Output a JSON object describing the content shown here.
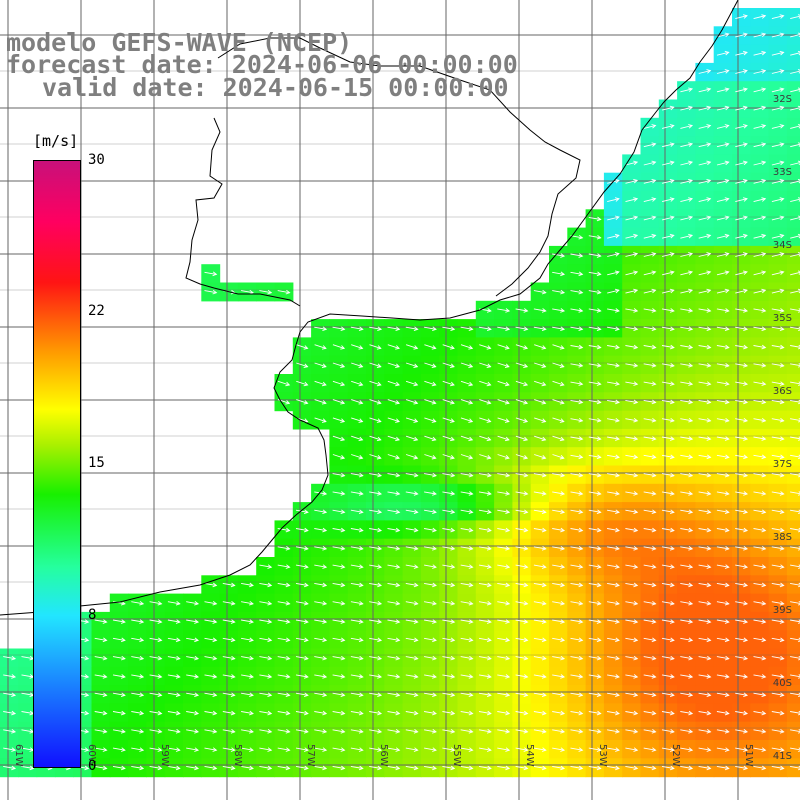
{
  "title": {
    "line1": "modelo GEFS-WAVE (NCEP)",
    "line2": "forecast date: 2024-06-06 00:00:00",
    "line3": "valid date: 2024-06-15 00:00:00"
  },
  "colorbar": {
    "unit": "[m/s]",
    "ticks": [
      "30",
      "22",
      "15",
      "8",
      "0"
    ],
    "min": 0,
    "max": 30,
    "colors": [
      "#1010ff",
      "#1a7dff",
      "#22e6ff",
      "#25ff9e",
      "#18f000",
      "#a8f000",
      "#ffff00",
      "#ffa000",
      "#ff1414",
      "#ff0060",
      "#c8107a"
    ]
  },
  "grid": {
    "lat_labels": [
      "32S",
      "33S",
      "34S",
      "35S",
      "36S",
      "37S",
      "38S",
      "39S",
      "40S",
      "41S"
    ],
    "lon_labels": [
      "61W",
      "60W",
      "59W",
      "58W",
      "57W",
      "56W",
      "55W",
      "54W",
      "53W",
      "52W",
      "51W"
    ]
  },
  "colors": {
    "land": "#ffffff",
    "coast": "#000000",
    "grid": "#666666",
    "arrows": "#ffffff"
  }
}
